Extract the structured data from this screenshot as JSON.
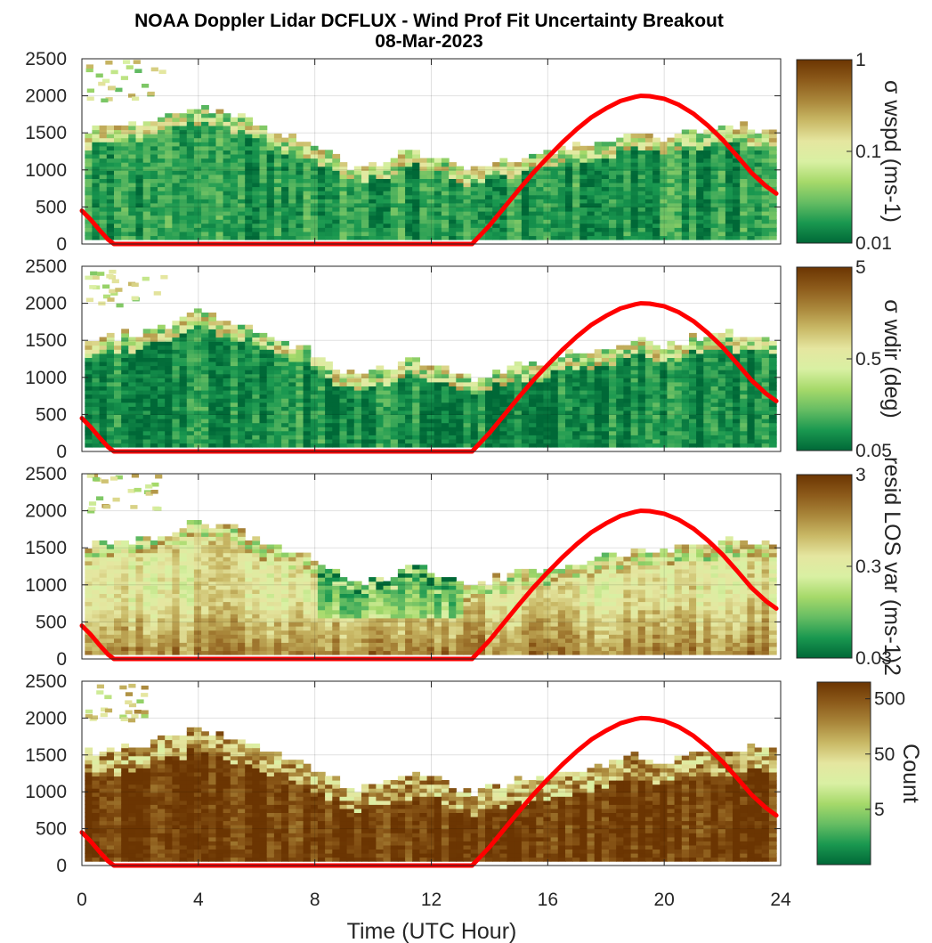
{
  "figure": {
    "title": "NOAA Doppler Lidar DCFLUX - Wind Prof Fit Uncertainty Breakout",
    "subtitle": "08-Mar-2023",
    "xlabel": "Time (UTC Hour)"
  },
  "chart_data": [
    {
      "type": "heatmap",
      "panel": 1,
      "colorbar_label": "σ wspd (ms-1)",
      "colorbar_ticks": [
        "1",
        "0.1",
        "0.01"
      ],
      "colorbar_scale": "log",
      "colorbar_range": [
        0.01,
        1
      ],
      "y_ticks": [
        "2500",
        "2000",
        "1500",
        "1000",
        "500",
        "0"
      ],
      "ylim": [
        0,
        2500
      ],
      "xlim": [
        0,
        24
      ],
      "grid": true,
      "field_level": 0.12,
      "edge_level": 0.45
    },
    {
      "type": "heatmap",
      "panel": 2,
      "colorbar_label": "σ wdir (deg)",
      "colorbar_ticks": [
        "5",
        "0.5",
        "0.05"
      ],
      "colorbar_scale": "log",
      "colorbar_range": [
        0.05,
        5
      ],
      "y_ticks": [
        "2500",
        "2000",
        "1500",
        "1000",
        "500",
        "0"
      ],
      "ylim": [
        0,
        2500
      ],
      "xlim": [
        0,
        24
      ],
      "grid": true,
      "field_level": 0.08,
      "edge_level": 0.45
    },
    {
      "type": "heatmap",
      "panel": 3,
      "colorbar_label": "resid LOS var (ms-1)2",
      "colorbar_ticks": [
        "3",
        "0.3",
        "0.03"
      ],
      "colorbar_scale": "log",
      "colorbar_range": [
        0.03,
        3
      ],
      "y_ticks": [
        "2500",
        "2000",
        "1500",
        "1000",
        "500",
        "0"
      ],
      "ylim": [
        0,
        2500
      ],
      "xlim": [
        0,
        24
      ],
      "grid": true,
      "field_level": 0.55,
      "edge_level": 0.5
    },
    {
      "type": "heatmap",
      "panel": 4,
      "colorbar_label": "Count",
      "colorbar_ticks": [
        "500",
        "50",
        "5"
      ],
      "colorbar_scale": "log",
      "colorbar_range": [
        0.5,
        1000
      ],
      "y_ticks": [
        "2500",
        "2000",
        "1500",
        "1000",
        "500",
        "0"
      ],
      "x_ticks": [
        "0",
        "4",
        "8",
        "12",
        "16",
        "20",
        "24"
      ],
      "ylim": [
        0,
        2500
      ],
      "xlim": [
        0,
        24
      ],
      "grid": true,
      "field_level": 0.97,
      "edge_level": 0.55
    }
  ],
  "data_top_height_m": {
    "hours": [
      0.1,
      1,
      2,
      3,
      3.5,
      4,
      4.5,
      5,
      6,
      7,
      8,
      8.5,
      9,
      9.5,
      10,
      10.5,
      11,
      11.5,
      12,
      12.5,
      13,
      13.5,
      14,
      15,
      16,
      17,
      18,
      19,
      20,
      21,
      22,
      23,
      23.8
    ],
    "height": [
      1500,
      1520,
      1600,
      1700,
      1780,
      1820,
      1780,
      1750,
      1600,
      1450,
      1300,
      1200,
      1050,
      1000,
      1050,
      1100,
      1200,
      1250,
      1150,
      1100,
      1000,
      950,
      1050,
      1150,
      1200,
      1300,
      1350,
      1450,
      1400,
      1500,
      1550,
      1550,
      1500
    ]
  },
  "boundary_layer_line": {
    "color": "#FF0000",
    "hours": [
      0,
      0.3,
      0.6,
      0.9,
      1.1,
      2,
      4,
      6,
      8,
      10,
      12,
      13.4,
      14,
      14.5,
      15,
      15.5,
      16,
      16.5,
      17,
      17.5,
      18,
      18.5,
      19,
      19.2,
      19.5,
      20,
      20.5,
      21,
      21.5,
      22,
      22.5,
      23,
      23.5,
      23.85
    ],
    "height": [
      450,
      330,
      190,
      60,
      0,
      0,
      0,
      0,
      0,
      0,
      0,
      0,
      250,
      490,
      730,
      960,
      1170,
      1370,
      1550,
      1710,
      1830,
      1930,
      1985,
      2000,
      1995,
      1960,
      1880,
      1760,
      1600,
      1410,
      1190,
      960,
      780,
      680
    ]
  },
  "colormap": [
    "#006837",
    "#1a9850",
    "#66bd63",
    "#a6d96a",
    "#d9f0a3",
    "#e5e6a0",
    "#c9b966",
    "#a9863a",
    "#8c5a1a",
    "#6b3502"
  ]
}
